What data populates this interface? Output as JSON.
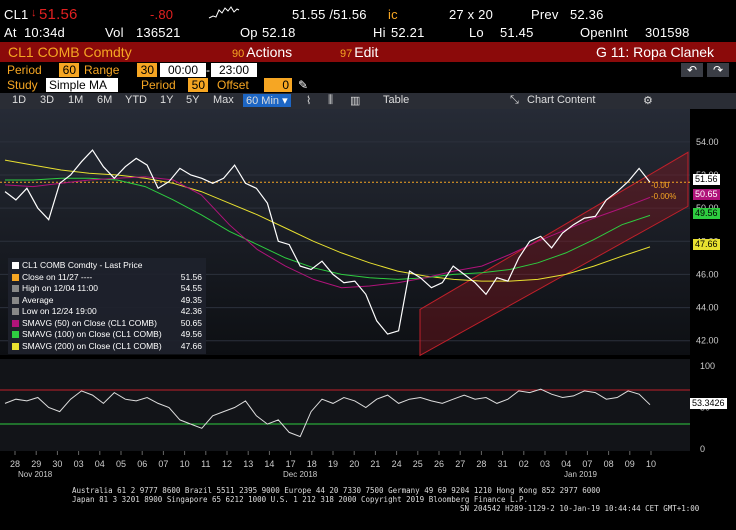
{
  "quote": {
    "ticker": "CL1",
    "last": "51.56",
    "change": "-.80",
    "bid_ask": "51.55 /51.56",
    "bid_ask_suffix": "ic",
    "size": "27 x 20",
    "prev_label": "Prev",
    "prev": "52.36",
    "at_label": "At",
    "time": "10:34d",
    "vol_label": "Vol",
    "vol": "136521",
    "op_label": "Op",
    "op": "52.18",
    "hi_label": "Hi",
    "hi": "52.21",
    "lo_label": "Lo",
    "lo": "51.45",
    "oi_label": "OpenInt",
    "oi": "301598"
  },
  "title_bar": {
    "security": "CL1 COMB Comdty",
    "actions_num": "90",
    "actions_label": "Actions",
    "edit_num": "97",
    "edit_label": "Edit",
    "page_label": "G 11: Ropa Clanek"
  },
  "params": {
    "period_label": "Period",
    "period_value": "60",
    "range_label": "Range",
    "range_value": "30",
    "time_from": "00:00",
    "time_to": "23:00",
    "study_label": "Study",
    "study_value": "Simple MA",
    "period2_label": "Period",
    "period2_value": "50",
    "offset_label": "Offset",
    "offset_value": "0"
  },
  "toolbar": {
    "ranges": [
      "1D",
      "3D",
      "1M",
      "6M",
      "YTD",
      "1Y",
      "5Y",
      "Max"
    ],
    "interval": "60 Min",
    "table_label": "Table",
    "chart_content_label": "Chart Content"
  },
  "legend": {
    "items": [
      {
        "label": "CL1 COMB Comdty - Last Price",
        "value": "",
        "color": "#ffffff"
      },
      {
        "label": "Close on 11/27 ----",
        "value": "51.56",
        "color": "#f6a623"
      },
      {
        "label": "High on 12/04 11:00",
        "value": "54.55",
        "color": "#888888"
      },
      {
        "label": "Average",
        "value": "49.35",
        "color": "#888888"
      },
      {
        "label": "Low on 12/24 19:00",
        "value": "42.36",
        "color": "#888888"
      },
      {
        "label": "SMAVG (50) on Close (CL1 COMB)",
        "value": "50.65",
        "color": "#b0137a"
      },
      {
        "label": "SMAVG (100) on Close (CL1 COMB)",
        "value": "49.56",
        "color": "#2ecc40"
      },
      {
        "label": "SMAVG (200) on Close (CL1 COMB)",
        "value": "47.66",
        "color": "#e8e030"
      }
    ]
  },
  "price_axis": {
    "ticks": [
      "54.00",
      "52.00",
      "50.00",
      "48.00",
      "46.00",
      "44.00",
      "42.00"
    ],
    "last_tag": "51.56",
    "sma50_tag": "50.65",
    "sma100_tag": "49.56",
    "sma200_tag": "47.66",
    "annot_change": "-0.00",
    "annot_pct": "-0.00%"
  },
  "osc_axis": {
    "ticks": [
      "100",
      "50",
      "0"
    ],
    "last_tag": "53.3426"
  },
  "x_axis": {
    "days": [
      "28",
      "29",
      "30",
      "03",
      "04",
      "05",
      "06",
      "07",
      "10",
      "11",
      "12",
      "13",
      "14",
      "17",
      "18",
      "19",
      "20",
      "21",
      "24",
      "25",
      "26",
      "27",
      "28",
      "31",
      "02",
      "03",
      "04",
      "07",
      "08",
      "09",
      "10"
    ],
    "months": [
      "Nov 2018",
      "Dec 2018",
      "Jan 2019"
    ]
  },
  "footer": {
    "line1": "Australia 61 2 9777 8600 Brazil 5511 2395 9000 Europe 44 20 7330 7500 Germany 49 69 9204 1210 Hong Kong 852 2977 6000",
    "line2": "Japan 81 3 3201 8900       Singapore 65 6212 1000      U.S. 1 212 318 2000           Copyright 2019 Bloomberg Finance L.P.",
    "line3": "SN 204542 H289-1129-2 10-Jan-19 10:44:44 CET  GMT+1:00"
  },
  "colors": {
    "amber": "#f6a623",
    "title_bar": "#8b0a0a",
    "price": "#ffffff",
    "sma50": "#b0137a",
    "sma100": "#2ecc40",
    "sma200": "#e8e030",
    "channel": "#c0202a",
    "change_negative": "#e02020"
  },
  "chart_data": {
    "type": "line",
    "y_range": [
      41.5,
      55.5
    ],
    "series": [
      {
        "name": "CL1 COMB Comdty - Last Price",
        "color": "#ffffff",
        "values": [
          51.0,
          50.5,
          51.2,
          50.0,
          49.3,
          51.5,
          52.0,
          52.8,
          53.5,
          52.5,
          51.8,
          52.5,
          53.0,
          52.6,
          51.2,
          51.6,
          52.4,
          52.0,
          51.8,
          51.5,
          51.8,
          52.6,
          51.5,
          51.2,
          50.3,
          48.0,
          47.8,
          46.5,
          46.3,
          46.8,
          46.0,
          45.5,
          45.6,
          44.8,
          43.2,
          42.4,
          42.6,
          46.2,
          45.8,
          45.2,
          45.5,
          46.5,
          46.0,
          45.5,
          44.8,
          45.8,
          45.6,
          47.0,
          48.0,
          48.3,
          47.6,
          48.5,
          49.0,
          49.4,
          49.5,
          50.5,
          51.0,
          51.6,
          52.4,
          51.56
        ]
      },
      {
        "name": "SMAVG (50) on Close (CL1 COMB)",
        "color": "#b0137a",
        "values": [
          51.4,
          51.3,
          51.5,
          51.7,
          51.8,
          51.9,
          51.7,
          50.8,
          49.0,
          47.5,
          46.5,
          45.7,
          45.2,
          45.3,
          45.5,
          45.8,
          46.2,
          46.5,
          47.2,
          48.0,
          48.7,
          49.4,
          50.0,
          50.65
        ]
      },
      {
        "name": "SMAVG (100) on Close (CL1 COMB)",
        "color": "#2ecc40",
        "values": [
          51.7,
          51.7,
          51.8,
          51.8,
          51.7,
          51.3,
          50.5,
          49.6,
          48.6,
          47.8,
          47.0,
          46.4,
          46.0,
          45.8,
          45.7,
          45.8,
          46.0,
          46.1,
          46.3,
          46.7,
          47.3,
          48.1,
          49.0,
          49.56
        ]
      },
      {
        "name": "SMAVG (200) on Close (CL1 COMB)",
        "color": "#e8e030",
        "values": [
          52.9,
          52.6,
          52.3,
          52.1,
          52.0,
          51.8,
          51.5,
          51.0,
          50.3,
          49.6,
          48.8,
          48.0,
          47.3,
          46.7,
          46.2,
          45.9,
          45.7,
          45.6,
          45.6,
          45.7,
          46.0,
          46.5,
          47.1,
          47.66
        ]
      }
    ],
    "oscillator": {
      "name": "",
      "y_range": [
        0,
        100
      ],
      "values": [
        55,
        60,
        58,
        62,
        50,
        45,
        60,
        70,
        65,
        55,
        68,
        60,
        58,
        62,
        55,
        50,
        35,
        30,
        25,
        40,
        45,
        50,
        58,
        40,
        30,
        35,
        20,
        15,
        45,
        60,
        55,
        62,
        58,
        50,
        60,
        65,
        55,
        60,
        62,
        58,
        55,
        60,
        65,
        60,
        62,
        55,
        60,
        70,
        68,
        72,
        66,
        62,
        64,
        70,
        68,
        60,
        62,
        70,
        66,
        53.34
      ]
    }
  }
}
